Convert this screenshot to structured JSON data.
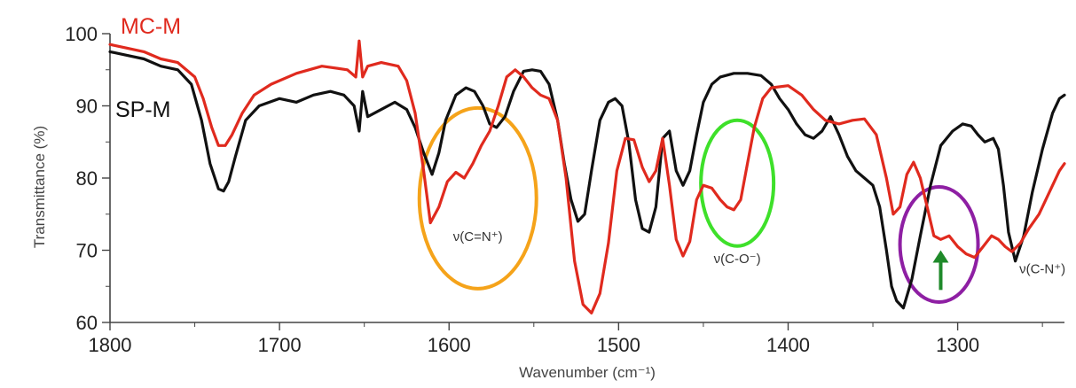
{
  "chart_data": {
    "type": "line",
    "title": "",
    "xlabel": "Wavenumber (cm⁻¹)",
    "ylabel": "Transmittance (%)",
    "xlim": [
      1800,
      1237
    ],
    "x_reversed": true,
    "ylim": [
      60,
      100
    ],
    "x_ticks": [
      1800,
      1700,
      1600,
      1500,
      1400,
      1300
    ],
    "y_ticks": [
      60,
      70,
      80,
      90,
      100
    ],
    "grid": false,
    "series": [
      {
        "name": "MC-M",
        "color": "#e02a1e",
        "x": [
          1800,
          1790,
          1780,
          1770,
          1760,
          1750,
          1745,
          1740,
          1736,
          1732,
          1728,
          1722,
          1715,
          1705,
          1690,
          1675,
          1660,
          1655,
          1653,
          1651,
          1648,
          1640,
          1630,
          1625,
          1620,
          1615,
          1611,
          1606,
          1601,
          1596,
          1591,
          1586,
          1581,
          1576,
          1571,
          1566,
          1561,
          1556,
          1551,
          1546,
          1541,
          1536,
          1531,
          1526,
          1521,
          1516,
          1511,
          1506,
          1501,
          1496,
          1491,
          1486,
          1482,
          1478,
          1474,
          1470,
          1466,
          1462,
          1458,
          1454,
          1450,
          1445,
          1440,
          1436,
          1432,
          1428,
          1424,
          1420,
          1415,
          1410,
          1400,
          1392,
          1385,
          1378,
          1370,
          1362,
          1355,
          1348,
          1342,
          1338,
          1334,
          1330,
          1326,
          1322,
          1318,
          1314,
          1310,
          1305,
          1300,
          1295,
          1290,
          1285,
          1280,
          1276,
          1272,
          1268,
          1263,
          1258,
          1252,
          1246,
          1240,
          1237
        ],
        "y": [
          98.5,
          98,
          97.5,
          96.5,
          96,
          94,
          91,
          87,
          84.5,
          84.5,
          86,
          89,
          91.5,
          93,
          94.5,
          95.5,
          95,
          94,
          99,
          94,
          95.5,
          96,
          95.5,
          93.5,
          89,
          81,
          73.8,
          76,
          79.5,
          80.8,
          80,
          82,
          84.5,
          86.5,
          90,
          94,
          95,
          94,
          92.5,
          91.5,
          91,
          88,
          80,
          68.5,
          62.5,
          61.3,
          64,
          71,
          81,
          85.5,
          85.3,
          81.5,
          79.5,
          81,
          85.5,
          79,
          71.5,
          69.2,
          71.2,
          77,
          79,
          78.6,
          77,
          76,
          75.6,
          77,
          82,
          87,
          91,
          92.5,
          92.8,
          91.5,
          89.5,
          88,
          87.5,
          88,
          88.2,
          86,
          80,
          75,
          76,
          80.5,
          82.2,
          80,
          76,
          72,
          71.5,
          72,
          70.5,
          69.5,
          69,
          70.5,
          72,
          71.5,
          70.5,
          69.8,
          71,
          73,
          75,
          78,
          81,
          82
        ]
      },
      {
        "name": "SP-M",
        "color": "#111111",
        "x": [
          1800,
          1790,
          1780,
          1770,
          1760,
          1752,
          1746,
          1741,
          1736,
          1733,
          1730,
          1726,
          1720,
          1712,
          1700,
          1690,
          1680,
          1670,
          1662,
          1656,
          1653,
          1651,
          1648,
          1640,
          1632,
          1625,
          1620,
          1615,
          1610,
          1606,
          1602,
          1596,
          1590,
          1585,
          1580,
          1576,
          1572,
          1567,
          1562,
          1556,
          1551,
          1546,
          1541,
          1536,
          1532,
          1528,
          1524,
          1520,
          1516,
          1511,
          1506,
          1502,
          1498,
          1494,
          1490,
          1486,
          1482,
          1478,
          1474,
          1470,
          1466,
          1462,
          1458,
          1454,
          1450,
          1445,
          1440,
          1432,
          1424,
          1416,
          1410,
          1405,
          1400,
          1395,
          1390,
          1385,
          1380,
          1375,
          1370,
          1365,
          1360,
          1355,
          1350,
          1346,
          1342,
          1339,
          1336,
          1332,
          1327,
          1322,
          1316,
          1310,
          1303,
          1297,
          1292,
          1288,
          1284,
          1279,
          1276,
          1273,
          1270,
          1266,
          1261,
          1256,
          1250,
          1244,
          1240,
          1237
        ],
        "y": [
          97.5,
          97,
          96.5,
          95.5,
          95,
          93,
          88,
          82,
          78.5,
          78.2,
          79.5,
          83,
          88,
          90,
          91,
          90.5,
          91.5,
          92,
          91.5,
          90,
          86.5,
          92,
          88.5,
          89.5,
          90.5,
          89.5,
          87,
          83.5,
          80.5,
          83.5,
          88,
          91.5,
          92.5,
          92,
          90,
          87.5,
          87,
          88.5,
          92,
          94.8,
          95,
          94.8,
          93,
          88,
          82,
          77,
          74,
          75,
          81,
          88,
          90.5,
          91,
          90,
          85,
          77,
          73,
          72.5,
          76,
          85.5,
          86.5,
          81,
          79,
          81,
          86,
          90.5,
          93,
          94,
          94.5,
          94.5,
          94.2,
          93,
          91,
          89.5,
          87.5,
          86,
          85.5,
          86.5,
          88.5,
          86,
          83,
          81,
          80,
          79,
          76,
          70,
          65,
          63,
          62,
          66,
          72,
          79,
          84.5,
          86.5,
          87.5,
          87.2,
          86,
          85,
          85.5,
          84,
          79,
          72.5,
          68.5,
          72,
          78,
          84,
          89,
          91,
          91.5
        ]
      }
    ],
    "series_labels": [
      {
        "text": "MC-M",
        "color": "#e02a1e"
      },
      {
        "text": "SP-M",
        "color": "#111111"
      }
    ],
    "annotations": [
      {
        "label": "ν(C=N⁺)",
        "x": 1583,
        "y": 71.3,
        "circle_color": "#f5a31a"
      },
      {
        "label": "ν(C-O⁻)",
        "x": 1430,
        "y": 68.2,
        "circle_color": "#3ee02a"
      },
      {
        "label": "ν(C-N⁺)",
        "x": 1250,
        "y": 66.8,
        "circle_color": "#8e1fa3"
      }
    ],
    "arrow": {
      "color": "#1f8a2a",
      "x": 1310,
      "y_from": 64.5,
      "y_to": 70,
      "direction": "up"
    }
  }
}
